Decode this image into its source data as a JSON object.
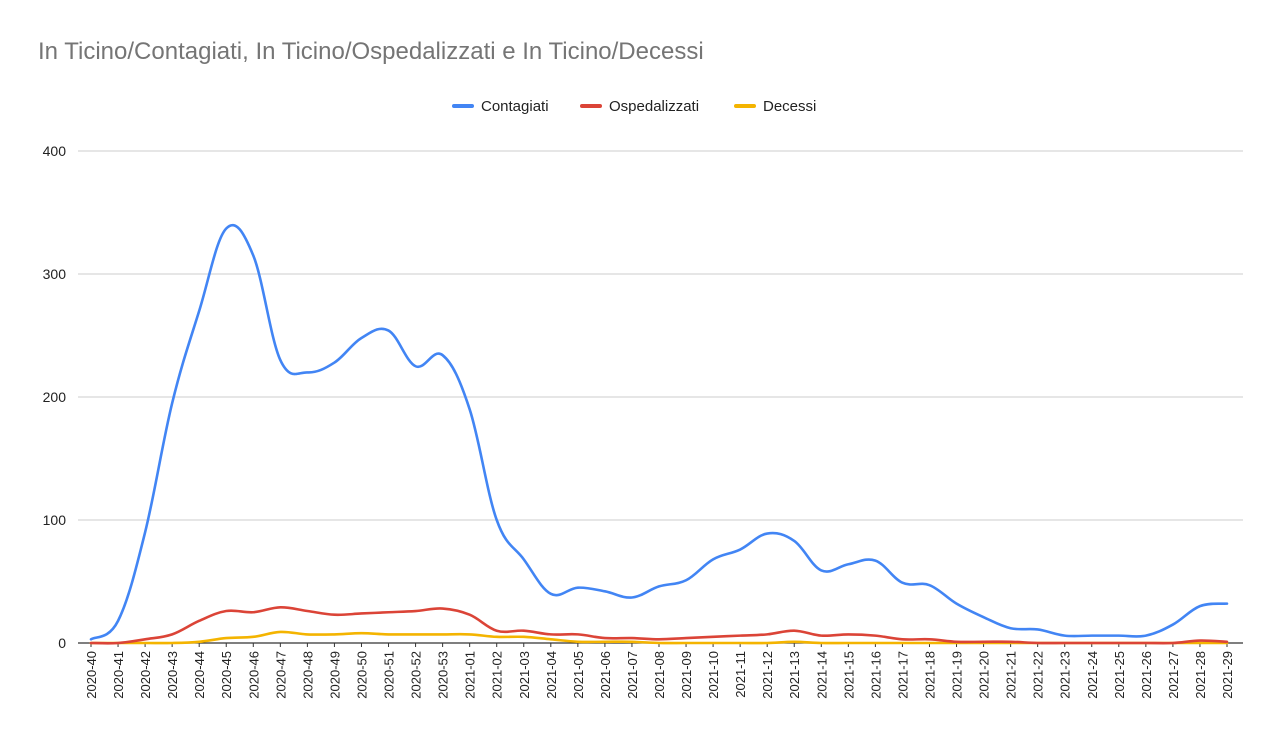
{
  "chart_data": {
    "type": "line",
    "title": "In Ticino/Contagiati, In Ticino/Ospedalizzati e In Ticino/Decessi",
    "xlabel": "",
    "ylabel": "",
    "ylim": [
      0,
      400
    ],
    "yticks": [
      0,
      100,
      200,
      300,
      400
    ],
    "grid": true,
    "legend_position": "top",
    "categories": [
      "2020-40",
      "2020-41",
      "2020-42",
      "2020-43",
      "2020-44",
      "2020-45",
      "2020-46",
      "2020-47",
      "2020-48",
      "2020-49",
      "2020-50",
      "2020-51",
      "2020-52",
      "2020-53",
      "2021-01",
      "2021-02",
      "2021-03",
      "2021-04",
      "2021-05",
      "2021-06",
      "2021-07",
      "2021-08",
      "2021-09",
      "2021-10",
      "2021-11",
      "2021-12",
      "2021-13",
      "2021-14",
      "2021-15",
      "2021-16",
      "2021-17",
      "2021-18",
      "2021-19",
      "2021-20",
      "2021-21",
      "2021-22",
      "2021-23",
      "2021-24",
      "2021-25",
      "2021-26",
      "2021-27",
      "2021-28",
      "2021-29"
    ],
    "series": [
      {
        "name": "Contagiati",
        "color": "#4285f4",
        "values": [
          3,
          18,
          90,
          195,
          270,
          337,
          315,
          230,
          220,
          228,
          248,
          254,
          225,
          234,
          190,
          100,
          68,
          40,
          45,
          42,
          37,
          46,
          51,
          68,
          76,
          89,
          83,
          59,
          64,
          67,
          49,
          47,
          32,
          21,
          12,
          11,
          6,
          6,
          6,
          6,
          15,
          30,
          32
        ]
      },
      {
        "name": "Ospedalizzati",
        "color": "#db4437",
        "values": [
          0,
          0,
          3,
          7,
          18,
          26,
          25,
          29,
          26,
          23,
          24,
          25,
          26,
          28,
          23,
          10,
          10,
          7,
          7,
          4,
          4,
          3,
          4,
          5,
          6,
          7,
          10,
          6,
          7,
          6,
          3,
          3,
          1,
          1,
          1,
          0,
          0,
          0,
          0,
          0,
          0,
          2,
          1
        ]
      },
      {
        "name": "Decessi",
        "color": "#f4b400",
        "values": [
          0,
          0,
          0,
          0,
          1,
          4,
          5,
          9,
          7,
          7,
          8,
          7,
          7,
          7,
          7,
          5,
          5,
          3,
          1,
          1,
          1,
          0,
          0,
          0,
          0,
          0,
          1,
          0,
          0,
          0,
          0,
          0,
          0,
          0,
          0,
          0,
          0,
          0,
          0,
          0,
          0,
          0,
          0
        ]
      }
    ]
  }
}
